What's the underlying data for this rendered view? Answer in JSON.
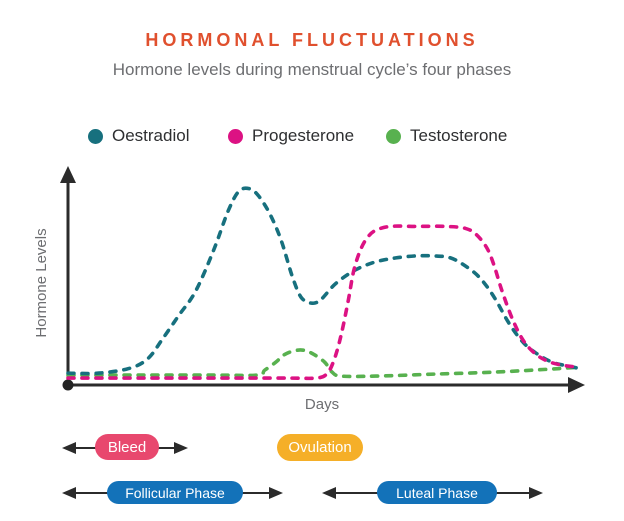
{
  "chart_data": {
    "type": "line",
    "title": "HORMONAL FLUCTUATIONS",
    "subtitle": "Hormone levels during menstrual cycle’s four phases",
    "xlabel": "Days",
    "ylabel": "Hormone Levels",
    "x_range": [
      0,
      28
    ],
    "y_range": [
      0,
      100
    ],
    "grid": false,
    "line_style": "dashed",
    "legend_position": "top",
    "colors": {
      "title": "#E0502E",
      "axis_text": "#6D6E71",
      "axis_line": "#2B2B2B",
      "legend_text": "#2E2F31"
    },
    "series": [
      {
        "name": "Testosterone",
        "color": "#58B14F",
        "points": [
          [
            0,
            3.5
          ],
          [
            4,
            3.5
          ],
          [
            8,
            3.5
          ],
          [
            10.4,
            3.5
          ],
          [
            10.8,
            6
          ],
          [
            11.4,
            10
          ],
          [
            11.9,
            14
          ],
          [
            12.5,
            16
          ],
          [
            13.0,
            16
          ],
          [
            13.5,
            14
          ],
          [
            14.1,
            10
          ],
          [
            14.5,
            5
          ],
          [
            15.0,
            3
          ],
          [
            16.9,
            3
          ],
          [
            20.1,
            4
          ],
          [
            23.4,
            5
          ],
          [
            26.4,
            6.5
          ],
          [
            28,
            7.5
          ]
        ]
      },
      {
        "name": "Oestradiol",
        "color": "#17707E",
        "points": [
          [
            0,
            4.5
          ],
          [
            1.7,
            4.5
          ],
          [
            3.4,
            7
          ],
          [
            4.4,
            12
          ],
          [
            5.2,
            22
          ],
          [
            6.1,
            34
          ],
          [
            7.0,
            46
          ],
          [
            8.0,
            67
          ],
          [
            8.8,
            87
          ],
          [
            9.4,
            97
          ],
          [
            10.0,
            98
          ],
          [
            10.5,
            94
          ],
          [
            11.1,
            85
          ],
          [
            11.7,
            72
          ],
          [
            12.3,
            54
          ],
          [
            12.8,
            43
          ],
          [
            13.4,
            40
          ],
          [
            13.9,
            42
          ],
          [
            14.7,
            50
          ],
          [
            15.8,
            57
          ],
          [
            16.9,
            61
          ],
          [
            18.0,
            63
          ],
          [
            19.1,
            64
          ],
          [
            20.1,
            64
          ],
          [
            21.0,
            63
          ],
          [
            21.8,
            59
          ],
          [
            22.6,
            53
          ],
          [
            23.4,
            43
          ],
          [
            24.2,
            30
          ],
          [
            25.0,
            20
          ],
          [
            25.8,
            14
          ],
          [
            26.6,
            10
          ],
          [
            27.5,
            8
          ],
          [
            28,
            7
          ]
        ]
      },
      {
        "name": "Progesterone",
        "color": "#DC1283",
        "points": [
          [
            0,
            2
          ],
          [
            4,
            2
          ],
          [
            8,
            2
          ],
          [
            12,
            2
          ],
          [
            13.6,
            2
          ],
          [
            14.2,
            4
          ],
          [
            14.6,
            11
          ],
          [
            15.0,
            24
          ],
          [
            15.4,
            42
          ],
          [
            15.7,
            57
          ],
          [
            16.1,
            68
          ],
          [
            16.5,
            74
          ],
          [
            16.9,
            77
          ],
          [
            17.7,
            79
          ],
          [
            19.1,
            79
          ],
          [
            20.7,
            79
          ],
          [
            21.8,
            78
          ],
          [
            22.4,
            75
          ],
          [
            23.0,
            68
          ],
          [
            23.4,
            59
          ],
          [
            23.8,
            47
          ],
          [
            24.4,
            32
          ],
          [
            25.0,
            21
          ],
          [
            25.7,
            14
          ],
          [
            26.5,
            10
          ],
          [
            27.5,
            8
          ],
          [
            28,
            8
          ]
        ]
      }
    ],
    "legend_order": [
      "Oestradiol",
      "Progesterone",
      "Testosterone"
    ],
    "annotations": [
      {
        "label": "Bleed",
        "style": "pill-with-range-arrow",
        "color": "#E8486E",
        "span_days": [
          0,
          6.5
        ]
      },
      {
        "label": "Ovulation",
        "style": "pill",
        "color": "#F5AF28",
        "span_days": [
          11.5,
          16
        ]
      },
      {
        "label": "Follicular Phase",
        "style": "pill-with-range-arrow",
        "color": "#1372B9",
        "span_days": [
          0,
          12
        ]
      },
      {
        "label": "Luteal Phase",
        "style": "pill-with-range-arrow",
        "color": "#1372B9",
        "span_days": [
          14,
          26
        ]
      }
    ]
  }
}
